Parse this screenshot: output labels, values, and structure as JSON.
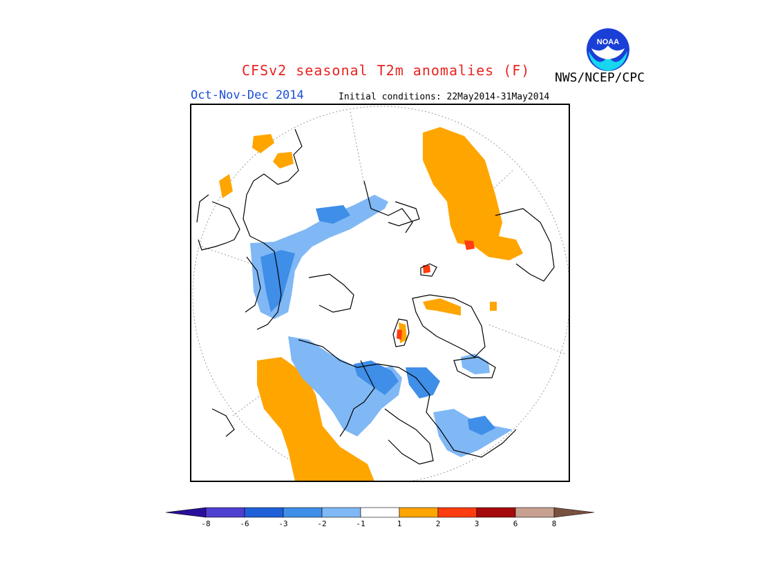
{
  "header": {
    "title": "CFSv2 seasonal T2m anomalies (F)",
    "org": "NWS/NCEP/CPC",
    "season": "Oct-Nov-Dec 2014",
    "initial_conditions": "Initial conditions: 22May2014-31May2014",
    "logo_text": "NOAA"
  },
  "colorbar": {
    "colors": [
      "#2a0f9a",
      "#4f3fd0",
      "#1f60d8",
      "#3f8ee8",
      "#80b8f5",
      "#ffffff",
      "#ffa500",
      "#ff3d10",
      "#a50b0b",
      "#c8a090",
      "#7a5040"
    ],
    "ticks": [
      "-8",
      "-6",
      "-3",
      "-2",
      "-1",
      "1",
      "2",
      "3",
      "6",
      "8"
    ]
  }
}
